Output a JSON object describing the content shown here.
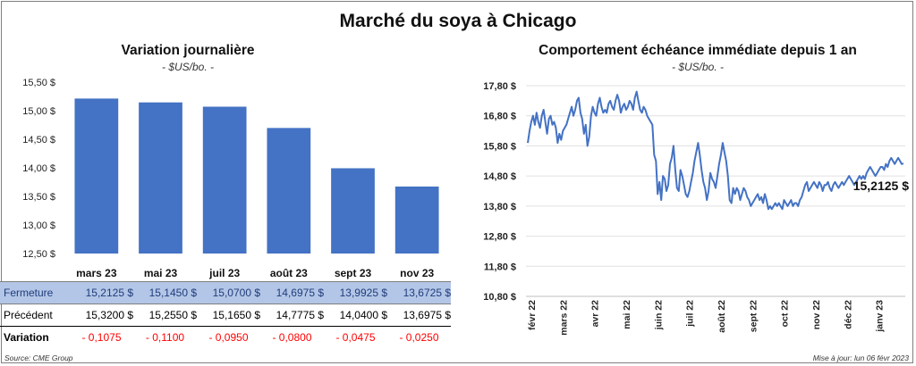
{
  "title": "Marché du soya à Chicago",
  "left": {
    "title": "Variation  journalière",
    "subtitle": "- $US/bo. -"
  },
  "right": {
    "title": "Comportement  échéance immédiate depuis 1 an",
    "subtitle": "- $US/bo. -",
    "last_label": "15,2125 $"
  },
  "table": {
    "rows": [
      {
        "label": "Fermeture",
        "values": [
          "15,2125  $",
          "15,1450  $",
          "15,0700  $",
          "14,6975  $",
          "13,9925  $",
          "13,6725  $"
        ]
      },
      {
        "label": "Précédent",
        "values": [
          "15,3200  $",
          "15,2550  $",
          "15,1650  $",
          "14,7775  $",
          "14,0400  $",
          "13,6975  $"
        ]
      },
      {
        "label": "Variation",
        "values": [
          "- 0,1075",
          "- 0,1100",
          "- 0,0950",
          "- 0,0800",
          "- 0,0475",
          "- 0,0250"
        ]
      }
    ]
  },
  "footer": {
    "source": "Source: CME Group",
    "updated": "Mise à jour: lun 06 févr 2023"
  },
  "colors": {
    "bar": "#4472c4",
    "line": "#4472c4",
    "band": "#b4c6e7",
    "negative": "#ff0000"
  },
  "chart_data": [
    {
      "type": "bar",
      "categories": [
        "mars 23",
        "mai 23",
        "juil 23",
        "août 23",
        "sept 23",
        "nov 23"
      ],
      "values": [
        15.2125,
        15.145,
        15.07,
        14.6975,
        13.9925,
        13.6725
      ],
      "ylim": [
        12.5,
        15.5
      ],
      "yticks": [
        12.5,
        13.0,
        13.5,
        14.0,
        14.5,
        15.0,
        15.5
      ],
      "ytick_labels": [
        "12,50 $",
        "13,00 $",
        "13,50 $",
        "14,00 $",
        "14,50 $",
        "15,00 $",
        "15,50 $"
      ],
      "grid": false
    },
    {
      "type": "line",
      "x_start": "2022-02-07",
      "x_end": "2023-02-06",
      "x_tick_labels": [
        "févr 22",
        "mars 22",
        "avr 22",
        "mai 22",
        "juin 22",
        "juil 22",
        "août 22",
        "sept 22",
        "oct 22",
        "nov 22",
        "déc 22",
        "janv 23"
      ],
      "ylim": [
        10.8,
        17.8
      ],
      "yticks": [
        10.8,
        11.8,
        12.8,
        13.8,
        14.8,
        15.8,
        16.8,
        17.8
      ],
      "ytick_labels": [
        "10,80 $",
        "11,80 $",
        "12,80 $",
        "13,80 $",
        "14,80 $",
        "15,80 $",
        "16,80 $",
        "17,80 $"
      ],
      "values": [
        15.9,
        16.3,
        16.6,
        16.8,
        16.5,
        16.9,
        16.6,
        16.4,
        16.8,
        17.0,
        16.6,
        16.2,
        16.7,
        16.8,
        16.5,
        16.6,
        16.4,
        15.9,
        16.2,
        16.0,
        16.3,
        16.4,
        16.5,
        16.7,
        16.9,
        17.1,
        16.8,
        17.0,
        17.3,
        17.4,
        16.9,
        16.7,
        16.2,
        16.5,
        15.8,
        16.1,
        16.8,
        17.1,
        16.9,
        16.8,
        17.2,
        17.4,
        17.1,
        16.9,
        17.0,
        16.9,
        17.2,
        17.3,
        17.1,
        17.0,
        17.3,
        17.5,
        17.3,
        16.9,
        17.1,
        17.2,
        17.0,
        17.1,
        17.3,
        17.2,
        17.0,
        17.4,
        17.6,
        17.3,
        17.0,
        16.9,
        17.1,
        17.0,
        16.8,
        16.7,
        16.6,
        16.5,
        15.5,
        15.3,
        14.2,
        14.6,
        14.0,
        14.8,
        14.7,
        14.3,
        14.5,
        15.2,
        15.4,
        15.8,
        15.0,
        14.4,
        14.3,
        15.0,
        14.8,
        14.5,
        14.2,
        14.1,
        14.3,
        14.6,
        14.9,
        15.3,
        15.6,
        15.9,
        15.5,
        15.0,
        14.6,
        14.4,
        14.0,
        14.3,
        14.9,
        14.7,
        14.6,
        14.4,
        14.8,
        15.2,
        15.5,
        15.9,
        15.6,
        15.3,
        14.8,
        14.0,
        13.9,
        14.4,
        14.2,
        14.4,
        14.3,
        14.0,
        14.2,
        14.4,
        14.3,
        14.1,
        14.0,
        13.8,
        13.9,
        14.0,
        14.1,
        14.2,
        14.0,
        14.1,
        13.9,
        14.2,
        14.0,
        13.7,
        13.8,
        13.7,
        13.8,
        13.9,
        13.8,
        13.9,
        13.8,
        13.7,
        14.0,
        13.9,
        13.8,
        13.9,
        14.0,
        13.8,
        13.9,
        13.9,
        13.8,
        14.0,
        14.1,
        14.3,
        14.5,
        14.6,
        14.3,
        14.4,
        14.5,
        14.6,
        14.5,
        14.4,
        14.6,
        14.5,
        14.3,
        14.5,
        14.5,
        14.6,
        14.4,
        14.3,
        14.5,
        14.6,
        14.5,
        14.4,
        14.5,
        14.6,
        14.5,
        14.6,
        14.7,
        14.8,
        14.7,
        14.6,
        14.5,
        14.6,
        14.7,
        14.8,
        14.7,
        14.8,
        14.7,
        14.9,
        15.0,
        15.1,
        15.0,
        14.9,
        14.8,
        14.9,
        15.0,
        15.1,
        15.1,
        15.0,
        15.2,
        15.1,
        15.3,
        15.4,
        15.3,
        15.2,
        15.3,
        15.4,
        15.3,
        15.2,
        15.2125
      ]
    }
  ]
}
